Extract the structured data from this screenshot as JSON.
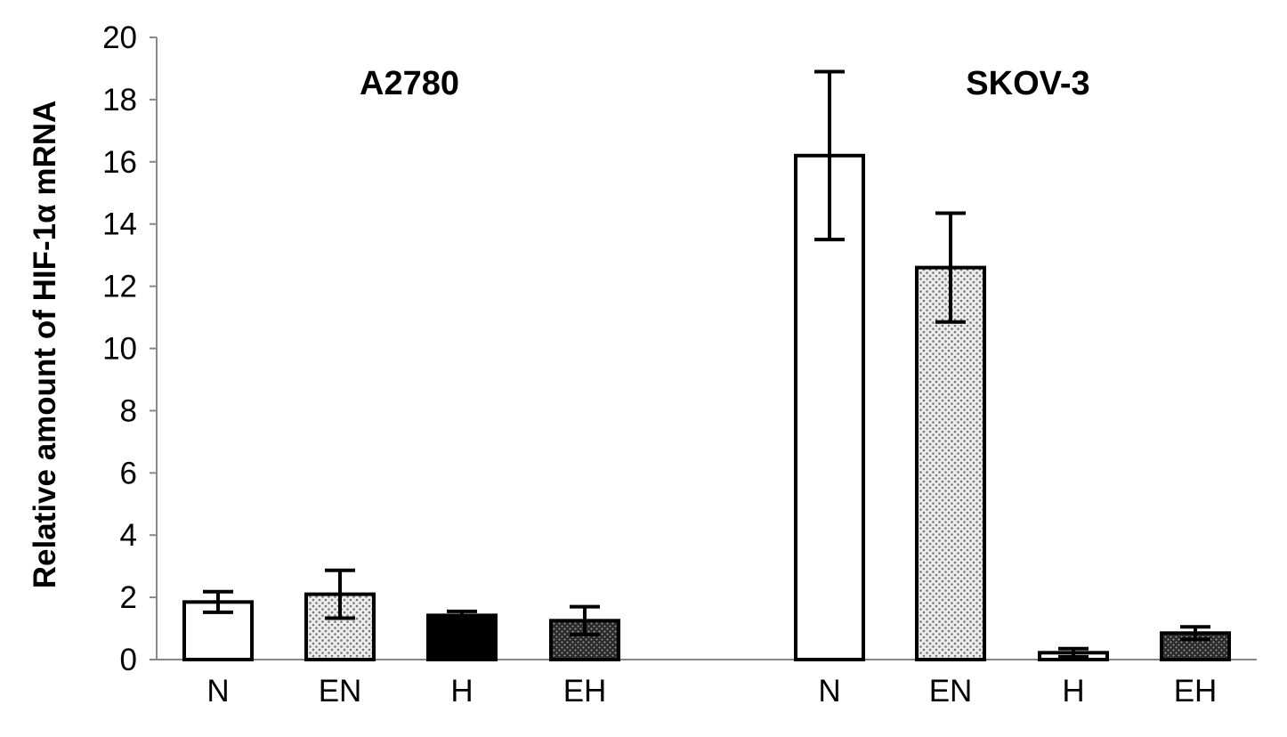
{
  "chart_data": {
    "type": "bar",
    "ylabel": "Relative amount of HIF-1α mRNA",
    "xlabel": "",
    "ylim": [
      0,
      20
    ],
    "yticks": [
      0,
      2,
      4,
      6,
      8,
      10,
      12,
      14,
      16,
      18,
      20
    ],
    "grid": false,
    "legend": "none",
    "groups": [
      {
        "title": "A2780",
        "categories": [
          "N",
          "EN",
          "H",
          "EH"
        ],
        "values": [
          1.85,
          2.1,
          1.42,
          1.25
        ],
        "errors": [
          0.33,
          0.77,
          0.13,
          0.45
        ],
        "fills": [
          "white",
          "light-dots",
          "black",
          "dark-dots"
        ]
      },
      {
        "title": "SKOV-3",
        "categories": [
          "N",
          "EN",
          "H",
          "EH"
        ],
        "values": [
          16.2,
          12.6,
          0.22,
          0.85
        ],
        "errors": [
          2.7,
          1.75,
          0.13,
          0.2
        ],
        "fills": [
          "white",
          "light-dots",
          "white",
          "dark-dots"
        ]
      }
    ]
  }
}
